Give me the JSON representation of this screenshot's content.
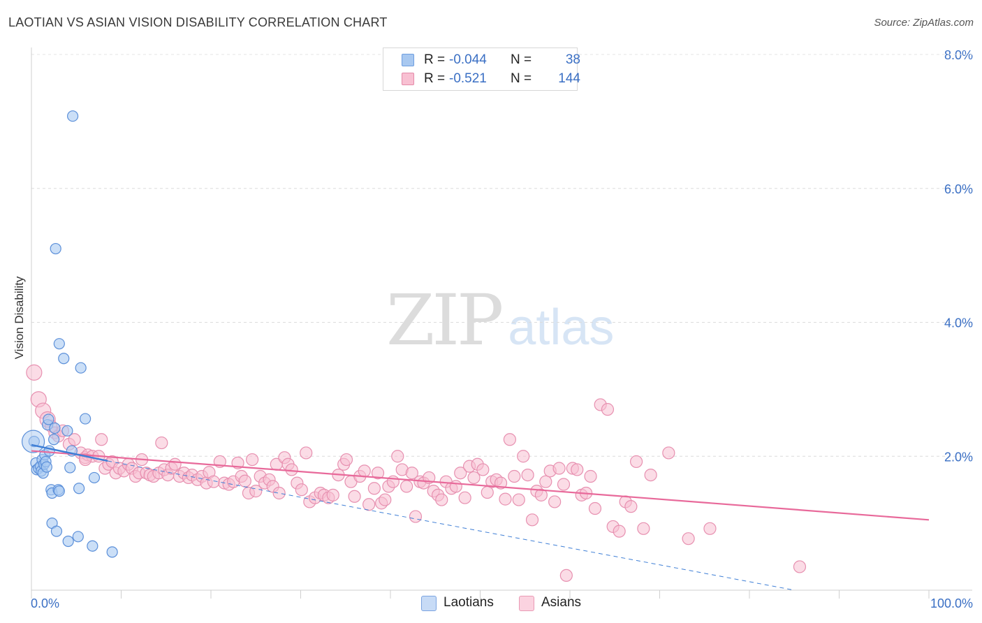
{
  "header": {
    "title": "LAOTIAN VS ASIAN VISION DISABILITY CORRELATION CHART",
    "source": "Source: ZipAtlas.com"
  },
  "watermark": {
    "zip": "ZIP",
    "atlas": "atlas"
  },
  "legend_top": [
    {
      "r_label": "R =",
      "r_value": "-0.044",
      "n_label": "N =",
      "n_value": "38",
      "color": "#a8c8f0",
      "border": "#6d9de0"
    },
    {
      "r_label": "R =",
      "r_value": "-0.521",
      "n_label": "N =",
      "n_value": "144",
      "color": "#f8c0d2",
      "border": "#e48aa8"
    }
  ],
  "legend_bottom": [
    {
      "label": "Laotians",
      "color": "#c7dbf6",
      "border": "#7aa3e0"
    },
    {
      "label": "Asians",
      "color": "#fbd3e0",
      "border": "#e99ab5"
    }
  ],
  "colors": {
    "blue": "#3f7fd6",
    "pink": "#e8699a",
    "tick_text": "#3a6fc4"
  },
  "chart_data": {
    "type": "scatter",
    "title": "LAOTIAN VS ASIAN VISION DISABILITY CORRELATION CHART",
    "xlabel": "",
    "ylabel": "Vision Disability",
    "xlim": [
      0,
      100
    ],
    "ylim": [
      0,
      8.0
    ],
    "x_ticks": [
      "0.0%",
      "100.0%"
    ],
    "y_ticks": [
      "2.0%",
      "4.0%",
      "6.0%",
      "8.0%"
    ],
    "y_tick_values": [
      2.0,
      4.0,
      6.0,
      8.0
    ],
    "grid": true,
    "legend_position": "top-center",
    "series": [
      {
        "name": "Laotians",
        "r": -0.044,
        "n": 38,
        "trend": {
          "x": [
            0,
            8.5
          ],
          "y": [
            2.17,
            1.93
          ]
        },
        "trend_dashed": {
          "x": [
            8.5,
            85
          ],
          "y": [
            1.93,
            0.0
          ]
        },
        "points": [
          [
            0.3,
            2.22
          ],
          [
            0.5,
            1.9
          ],
          [
            0.6,
            1.8
          ],
          [
            0.8,
            1.82
          ],
          [
            1.0,
            1.85
          ],
          [
            1.1,
            1.78
          ],
          [
            1.2,
            1.95
          ],
          [
            1.3,
            1.75
          ],
          [
            1.4,
            1.88
          ],
          [
            1.5,
            2.02
          ],
          [
            1.6,
            1.92
          ],
          [
            1.7,
            1.84
          ],
          [
            1.8,
            2.47
          ],
          [
            1.9,
            2.55
          ],
          [
            2.0,
            2.08
          ],
          [
            2.2,
            1.5
          ],
          [
            2.3,
            1.45
          ],
          [
            2.3,
            1.0
          ],
          [
            2.5,
            2.25
          ],
          [
            2.6,
            2.42
          ],
          [
            2.8,
            0.88
          ],
          [
            3.0,
            1.5
          ],
          [
            3.1,
            1.48
          ],
          [
            3.1,
            3.68
          ],
          [
            3.6,
            3.46
          ],
          [
            4.0,
            2.38
          ],
          [
            4.1,
            0.73
          ],
          [
            4.3,
            1.83
          ],
          [
            4.5,
            2.08
          ],
          [
            4.6,
            7.08
          ],
          [
            5.2,
            0.8
          ],
          [
            5.3,
            1.52
          ],
          [
            5.5,
            3.32
          ],
          [
            6.0,
            2.56
          ],
          [
            6.8,
            0.66
          ],
          [
            7.0,
            1.68
          ],
          [
            9.0,
            0.57
          ],
          [
            2.7,
            5.1
          ]
        ],
        "large_point": [
          0.2,
          2.22
        ]
      },
      {
        "name": "Asians",
        "r": -0.521,
        "n": 144,
        "trend": {
          "x": [
            0,
            100
          ],
          "y": [
            2.08,
            1.05
          ]
        },
        "points": [
          [
            0.3,
            3.25
          ],
          [
            0.8,
            2.85
          ],
          [
            1.3,
            2.68
          ],
          [
            1.8,
            2.55
          ],
          [
            2.2,
            2.45
          ],
          [
            2.6,
            2.35
          ],
          [
            3.0,
            2.3
          ],
          [
            3.5,
            2.38
          ],
          [
            4.2,
            2.18
          ],
          [
            4.8,
            2.25
          ],
          [
            5.5,
            2.05
          ],
          [
            6.0,
            1.98
          ],
          [
            6.3,
            2.02
          ],
          [
            6.8,
            2.0
          ],
          [
            7.5,
            2.0
          ],
          [
            7.8,
            2.25
          ],
          [
            8.2,
            1.82
          ],
          [
            8.6,
            1.88
          ],
          [
            9.0,
            1.92
          ],
          [
            9.4,
            1.75
          ],
          [
            9.8,
            1.82
          ],
          [
            10.3,
            1.78
          ],
          [
            10.8,
            1.88
          ],
          [
            11.2,
            1.82
          ],
          [
            11.6,
            1.7
          ],
          [
            12.0,
            1.75
          ],
          [
            12.3,
            1.95
          ],
          [
            12.8,
            1.75
          ],
          [
            13.2,
            1.72
          ],
          [
            13.6,
            1.7
          ],
          [
            14.2,
            1.75
          ],
          [
            14.5,
            2.2
          ],
          [
            14.8,
            1.8
          ],
          [
            15.2,
            1.72
          ],
          [
            15.6,
            1.82
          ],
          [
            16.0,
            1.88
          ],
          [
            16.5,
            1.7
          ],
          [
            17.0,
            1.75
          ],
          [
            17.5,
            1.68
          ],
          [
            17.9,
            1.72
          ],
          [
            18.5,
            1.65
          ],
          [
            19.0,
            1.7
          ],
          [
            19.5,
            1.6
          ],
          [
            19.8,
            1.76
          ],
          [
            20.3,
            1.62
          ],
          [
            21.0,
            1.92
          ],
          [
            21.5,
            1.6
          ],
          [
            22.0,
            1.58
          ],
          [
            22.5,
            1.62
          ],
          [
            23.0,
            1.9
          ],
          [
            23.4,
            1.7
          ],
          [
            23.8,
            1.63
          ],
          [
            24.2,
            1.45
          ],
          [
            24.6,
            1.95
          ],
          [
            25.0,
            1.48
          ],
          [
            25.5,
            1.7
          ],
          [
            26.0,
            1.6
          ],
          [
            26.5,
            1.65
          ],
          [
            26.9,
            1.55
          ],
          [
            27.3,
            1.88
          ],
          [
            27.6,
            1.45
          ],
          [
            28.2,
            1.98
          ],
          [
            28.6,
            1.88
          ],
          [
            29.0,
            1.8
          ],
          [
            29.6,
            1.6
          ],
          [
            30.1,
            1.5
          ],
          [
            30.6,
            2.05
          ],
          [
            31.0,
            1.32
          ],
          [
            31.6,
            1.38
          ],
          [
            32.2,
            1.45
          ],
          [
            32.6,
            1.42
          ],
          [
            33.1,
            1.38
          ],
          [
            33.6,
            1.42
          ],
          [
            34.2,
            1.72
          ],
          [
            34.8,
            1.88
          ],
          [
            35.1,
            1.95
          ],
          [
            35.6,
            1.62
          ],
          [
            36.0,
            1.4
          ],
          [
            36.6,
            1.7
          ],
          [
            37.1,
            1.78
          ],
          [
            37.6,
            1.28
          ],
          [
            38.2,
            1.52
          ],
          [
            38.6,
            1.75
          ],
          [
            39.0,
            1.3
          ],
          [
            39.4,
            1.35
          ],
          [
            39.8,
            1.55
          ],
          [
            40.3,
            1.62
          ],
          [
            40.8,
            2.0
          ],
          [
            41.3,
            1.8
          ],
          [
            41.8,
            1.55
          ],
          [
            42.4,
            1.75
          ],
          [
            42.8,
            1.1
          ],
          [
            43.3,
            1.62
          ],
          [
            43.7,
            1.6
          ],
          [
            44.3,
            1.68
          ],
          [
            44.8,
            1.48
          ],
          [
            45.3,
            1.42
          ],
          [
            45.7,
            1.35
          ],
          [
            46.2,
            1.62
          ],
          [
            46.8,
            1.52
          ],
          [
            47.3,
            1.55
          ],
          [
            47.8,
            1.75
          ],
          [
            48.3,
            1.38
          ],
          [
            48.8,
            1.85
          ],
          [
            49.3,
            1.68
          ],
          [
            49.7,
            1.88
          ],
          [
            50.3,
            1.8
          ],
          [
            50.8,
            1.46
          ],
          [
            51.3,
            1.62
          ],
          [
            51.8,
            1.65
          ],
          [
            52.3,
            1.6
          ],
          [
            52.8,
            1.36
          ],
          [
            53.3,
            2.25
          ],
          [
            53.8,
            1.7
          ],
          [
            54.3,
            1.35
          ],
          [
            54.8,
            2.0
          ],
          [
            55.3,
            1.72
          ],
          [
            55.8,
            1.05
          ],
          [
            56.3,
            1.48
          ],
          [
            56.8,
            1.42
          ],
          [
            57.3,
            1.62
          ],
          [
            57.8,
            1.78
          ],
          [
            58.3,
            1.32
          ],
          [
            58.8,
            1.82
          ],
          [
            59.3,
            1.58
          ],
          [
            59.6,
            0.22
          ],
          [
            60.3,
            1.82
          ],
          [
            60.8,
            1.8
          ],
          [
            61.3,
            1.42
          ],
          [
            61.8,
            1.45
          ],
          [
            62.3,
            1.7
          ],
          [
            62.8,
            1.22
          ],
          [
            63.4,
            2.77
          ],
          [
            64.2,
            2.7
          ],
          [
            64.8,
            0.95
          ],
          [
            65.5,
            0.88
          ],
          [
            66.2,
            1.32
          ],
          [
            66.8,
            1.25
          ],
          [
            67.4,
            1.92
          ],
          [
            68.2,
            0.92
          ],
          [
            69.0,
            1.72
          ],
          [
            71.0,
            2.05
          ],
          [
            73.2,
            0.77
          ],
          [
            75.6,
            0.92
          ],
          [
            85.6,
            0.35
          ],
          [
            6.0,
            1.95
          ]
        ]
      }
    ]
  }
}
